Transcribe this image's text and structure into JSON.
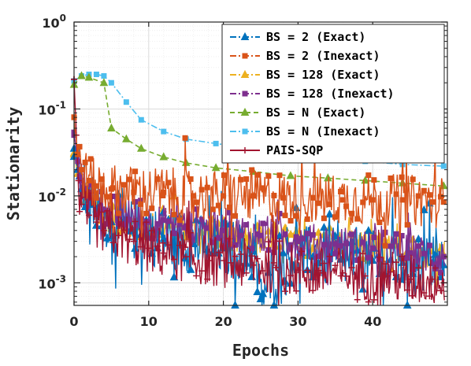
{
  "chart_data": {
    "type": "line",
    "xlabel": "Epochs",
    "ylabel": "Stationarity",
    "xlim": [
      0,
      50
    ],
    "ylim": [
      0.00055,
      1
    ],
    "yscale": "log",
    "grid": true,
    "legend_position": "top-right",
    "x_ticks": [
      0,
      10,
      20,
      30,
      40
    ],
    "x_tick_labels": [
      "0",
      "10",
      "20",
      "30",
      "40"
    ],
    "y_ticks": [
      0.001,
      0.01,
      0.1,
      1
    ],
    "y_tick_labels": [
      {
        "base": "10",
        "exp": "-3"
      },
      {
        "base": "10",
        "exp": "-2"
      },
      {
        "base": "10",
        "exp": "-1"
      },
      {
        "base": "10",
        "exp": "0"
      }
    ],
    "series": [
      {
        "name": "BS = 2 (Exact)",
        "color": "#0072BD",
        "marker": "triangle",
        "dash": "dashdot",
        "x": [
          0,
          0.5,
          1,
          2,
          3,
          5,
          8,
          12,
          16,
          20,
          24,
          25,
          28,
          32,
          36,
          40,
          44,
          48,
          49.5
        ],
        "y": [
          0.035,
          0.02,
          0.012,
          0.009,
          0.007,
          0.005,
          0.004,
          0.0032,
          0.0028,
          0.0025,
          0.0023,
          0.00065,
          0.0022,
          0.002,
          0.0019,
          0.0018,
          0.0017,
          0.0017,
          0.0016
        ]
      },
      {
        "name": "BS = 2 (Inexact)",
        "color": "#D95319",
        "marker": "square",
        "dash": "dashdot",
        "x": [
          0,
          0.5,
          1,
          2,
          3,
          5,
          8,
          12,
          16,
          20,
          24,
          28,
          32,
          36,
          40,
          44,
          48,
          49.5
        ],
        "y": [
          0.08,
          0.03,
          0.02,
          0.015,
          0.013,
          0.012,
          0.011,
          0.011,
          0.01,
          0.01,
          0.01,
          0.0095,
          0.0095,
          0.009,
          0.009,
          0.009,
          0.0085,
          0.0085
        ]
      },
      {
        "name": "BS = 128 (Exact)",
        "color": "#EDB120",
        "marker": "triangle",
        "dash": "dashdot",
        "x": [
          0,
          0.5,
          1,
          2,
          4,
          6,
          10,
          15,
          20,
          25,
          30,
          35,
          40,
          45,
          49.5
        ],
        "y": [
          0.03,
          0.018,
          0.012,
          0.009,
          0.006,
          0.005,
          0.0045,
          0.004,
          0.0035,
          0.0032,
          0.003,
          0.0027,
          0.0025,
          0.0023,
          0.0021
        ]
      },
      {
        "name": "BS = 128 (Inexact)",
        "color": "#7E2F8E",
        "marker": "square",
        "dash": "dashdot",
        "x": [
          0,
          0.5,
          1,
          2,
          4,
          6,
          10,
          15,
          20,
          25,
          30,
          35,
          40,
          45,
          49.5
        ],
        "y": [
          0.05,
          0.025,
          0.015,
          0.01,
          0.007,
          0.006,
          0.005,
          0.0045,
          0.004,
          0.0035,
          0.003,
          0.0028,
          0.0025,
          0.0022,
          0.002
        ]
      },
      {
        "name": "BS = N (Exact)",
        "color": "#77AC30",
        "marker": "triangle",
        "dash": "dashed",
        "x": [
          0,
          1,
          2,
          4,
          5,
          7,
          9,
          12,
          15,
          19,
          24,
          29,
          34,
          39,
          44,
          49.5
        ],
        "y": [
          0.19,
          0.24,
          0.23,
          0.2,
          0.06,
          0.045,
          0.035,
          0.028,
          0.024,
          0.021,
          0.019,
          0.017,
          0.016,
          0.015,
          0.014,
          0.013
        ]
      },
      {
        "name": "BS = N (Inexact)",
        "color": "#4DBEEE",
        "marker": "square",
        "dash": "dashdot",
        "x": [
          0,
          1,
          2,
          3,
          4,
          5,
          7,
          9,
          12,
          15,
          19,
          24,
          29,
          34,
          39,
          44,
          49.5
        ],
        "y": [
          0.21,
          0.24,
          0.25,
          0.25,
          0.24,
          0.2,
          0.12,
          0.075,
          0.055,
          0.045,
          0.04,
          0.035,
          0.03,
          0.027,
          0.025,
          0.023,
          0.022
        ]
      },
      {
        "name": "PAIS-SQP",
        "color": "#A2142F",
        "marker": "plus",
        "dash": "solid",
        "x": [
          0,
          0.3,
          0.6,
          1,
          2,
          3,
          4,
          6,
          8,
          10,
          12,
          15,
          18,
          21,
          24,
          27,
          30,
          33,
          36,
          39,
          42,
          45,
          48,
          49.5
        ],
        "y": [
          0.22,
          0.05,
          0.015,
          0.008,
          0.006,
          0.005,
          0.004,
          0.0035,
          0.003,
          0.0025,
          0.0022,
          0.002,
          0.0018,
          0.0017,
          0.0016,
          0.0015,
          0.0014,
          0.0013,
          0.0013,
          0.0012,
          0.0012,
          0.0011,
          0.0011,
          0.001
        ]
      }
    ]
  }
}
